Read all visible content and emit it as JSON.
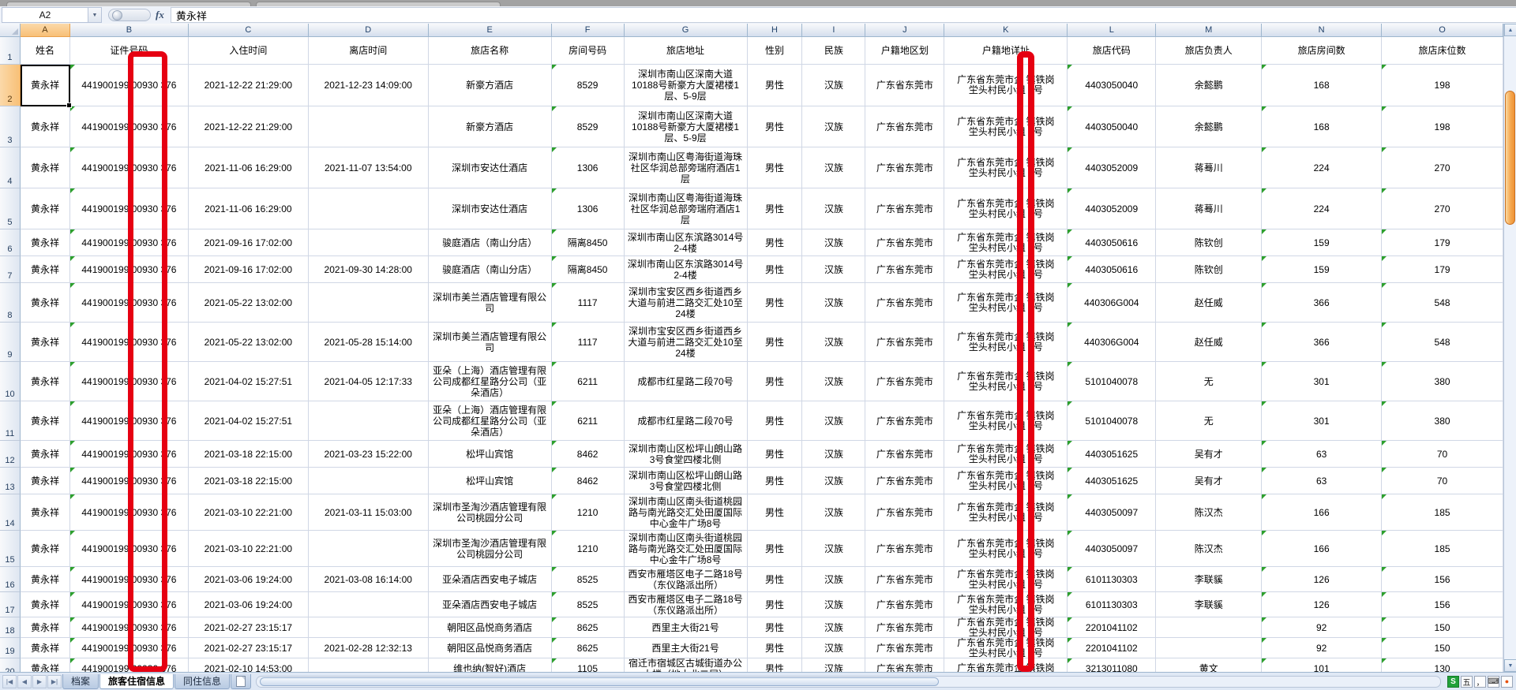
{
  "formula_bar": {
    "name_box": "A2",
    "fx_label": "fx",
    "value": "黄永祥"
  },
  "columns": {
    "letters": [
      "A",
      "B",
      "C",
      "D",
      "E",
      "F",
      "G",
      "H",
      "I",
      "J",
      "K",
      "L",
      "M",
      "N",
      "O"
    ],
    "headers": [
      "姓名",
      "证件号码",
      "入住时间",
      "离店时间",
      "旅店名称",
      "房间号码",
      "旅店地址",
      "性别",
      "民族",
      "户籍地区划",
      "户籍地详址",
      "旅店代码",
      "旅店负责人",
      "旅店房间数",
      "旅店床位数"
    ]
  },
  "common": {
    "name": "黄永祥",
    "id_parts": [
      "441900199",
      "00930",
      "376"
    ],
    "gender": "男性",
    "ethnicity": "汉族",
    "region": "广东省东莞市",
    "home_parts": [
      "广东省东莞市企",
      "镇铁岗坣头村民小组",
      "0号"
    ]
  },
  "rows": [
    {
      "num": 2,
      "checkin": "2021-12-22 21:29:00",
      "checkout": "2021-12-23 14:09:00",
      "hotel": "新豪方酒店",
      "room": "8529",
      "hotel_address": "深圳市南山区深南大道10188号新豪方大厦裙楼1层、5-9层",
      "code": "4403050040",
      "manager": "余懿鹏",
      "rooms": "168",
      "beds": "198"
    },
    {
      "num": 3,
      "checkin": "2021-12-22 21:29:00",
      "checkout": "",
      "hotel": "新豪方酒店",
      "room": "8529",
      "hotel_address": "深圳市南山区深南大道10188号新豪方大厦裙楼1层、5-9层",
      "code": "4403050040",
      "manager": "余懿鹏",
      "rooms": "168",
      "beds": "198"
    },
    {
      "num": 4,
      "checkin": "2021-11-06 16:29:00",
      "checkout": "2021-11-07 13:54:00",
      "hotel": "深圳市安达仕酒店",
      "room": "1306",
      "hotel_address": "深圳市南山区粤海街道海珠社区华润总部旁瑞府酒店1层",
      "code": "4403052009",
      "manager": "蒋蓦川",
      "rooms": "224",
      "beds": "270"
    },
    {
      "num": 5,
      "checkin": "2021-11-06 16:29:00",
      "checkout": "",
      "hotel": "深圳市安达仕酒店",
      "room": "1306",
      "hotel_address": "深圳市南山区粤海街道海珠社区华润总部旁瑞府酒店1层",
      "code": "4403052009",
      "manager": "蒋蓦川",
      "rooms": "224",
      "beds": "270"
    },
    {
      "num": 6,
      "checkin": "2021-09-16 17:02:00",
      "checkout": "",
      "hotel": "骏庭酒店（南山分店）",
      "room": "隔离8450",
      "hotel_address": "深圳市南山区东滨路3014号2-4楼",
      "code": "4403050616",
      "manager": "陈钦创",
      "rooms": "159",
      "beds": "179"
    },
    {
      "num": 7,
      "checkin": "2021-09-16 17:02:00",
      "checkout": "2021-09-30 14:28:00",
      "hotel": "骏庭酒店（南山分店）",
      "room": "隔离8450",
      "hotel_address": "深圳市南山区东滨路3014号2-4楼",
      "code": "4403050616",
      "manager": "陈钦创",
      "rooms": "159",
      "beds": "179"
    },
    {
      "num": 8,
      "checkin": "2021-05-22 13:02:00",
      "checkout": "",
      "hotel": "深圳市美兰酒店管理有限公司",
      "room": "1117",
      "hotel_address": "深圳市宝安区西乡街道西乡大道与前进二路交汇处10至24楼",
      "code": "440306G004",
      "manager": "赵任威",
      "rooms": "366",
      "beds": "548"
    },
    {
      "num": 9,
      "checkin": "2021-05-22 13:02:00",
      "checkout": "2021-05-28 15:14:00",
      "hotel": "深圳市美兰酒店管理有限公司",
      "room": "1117",
      "hotel_address": "深圳市宝安区西乡街道西乡大道与前进二路交汇处10至24楼",
      "code": "440306G004",
      "manager": "赵任威",
      "rooms": "366",
      "beds": "548"
    },
    {
      "num": 10,
      "checkin": "2021-04-02 15:27:51",
      "checkout": "2021-04-05 12:17:33",
      "hotel": "亚朵（上海）酒店管理有限公司成都红星路分公司（亚朵酒店）",
      "room": "6211",
      "hotel_address": "成都市红星路二段70号",
      "code": "5101040078",
      "manager": "无",
      "rooms": "301",
      "beds": "380"
    },
    {
      "num": 11,
      "checkin": "2021-04-02 15:27:51",
      "checkout": "",
      "hotel": "亚朵（上海）酒店管理有限公司成都红星路分公司（亚朵酒店）",
      "room": "6211",
      "hotel_address": "成都市红星路二段70号",
      "code": "5101040078",
      "manager": "无",
      "rooms": "301",
      "beds": "380"
    },
    {
      "num": 12,
      "checkin": "2021-03-18 22:15:00",
      "checkout": "2021-03-23 15:22:00",
      "hotel": "松坪山宾馆",
      "room": "8462",
      "hotel_address": "深圳市南山区松坪山朗山路3号食堂四楼北侧",
      "code": "4403051625",
      "manager": "吴有才",
      "rooms": "63",
      "beds": "70"
    },
    {
      "num": 13,
      "checkin": "2021-03-18 22:15:00",
      "checkout": "",
      "hotel": "松坪山宾馆",
      "room": "8462",
      "hotel_address": "深圳市南山区松坪山朗山路3号食堂四楼北侧",
      "code": "4403051625",
      "manager": "吴有才",
      "rooms": "63",
      "beds": "70"
    },
    {
      "num": 14,
      "checkin": "2021-03-10 22:21:00",
      "checkout": "2021-03-11 15:03:00",
      "hotel": "深圳市圣淘沙酒店管理有限公司桃园分公司",
      "room": "1210",
      "hotel_address": "深圳市南山区南头街道桃园路与南光路交汇处田厦国际中心金牛广场8号",
      "code": "4403050097",
      "manager": "陈汉杰",
      "rooms": "166",
      "beds": "185"
    },
    {
      "num": 15,
      "checkin": "2021-03-10 22:21:00",
      "checkout": "",
      "hotel": "深圳市圣淘沙酒店管理有限公司桃园分公司",
      "room": "1210",
      "hotel_address": "深圳市南山区南头街道桃园路与南光路交汇处田厦国际中心金牛广场8号",
      "code": "4403050097",
      "manager": "陈汉杰",
      "rooms": "166",
      "beds": "185"
    },
    {
      "num": 16,
      "checkin": "2021-03-06 19:24:00",
      "checkout": "2021-03-08 16:14:00",
      "hotel": "亚朵酒店西安电子城店",
      "room": "8525",
      "hotel_address": "西安市雁塔区电子二路18号（东仪路派出所）",
      "code": "6101130303",
      "manager": "李联貕",
      "rooms": "126",
      "beds": "156"
    },
    {
      "num": 17,
      "checkin": "2021-03-06 19:24:00",
      "checkout": "",
      "hotel": "亚朵酒店西安电子城店",
      "room": "8525",
      "hotel_address": "西安市雁塔区电子二路18号（东仪路派出所）",
      "code": "6101130303",
      "manager": "李联貕",
      "rooms": "126",
      "beds": "156"
    },
    {
      "num": 18,
      "checkin": "2021-02-27 23:15:17",
      "checkout": "",
      "hotel": "朝阳区品悦商务酒店",
      "room": "8625",
      "hotel_address": "西里主大街21号",
      "code": "2201041102",
      "manager": "",
      "rooms": "92",
      "beds": "150"
    },
    {
      "num": 19,
      "checkin": "2021-02-27 23:15:17",
      "checkout": "2021-02-28 12:32:13",
      "hotel": "朝阳区品悦商务酒店",
      "room": "8625",
      "hotel_address": "西里主大街21号",
      "code": "2201041102",
      "manager": "",
      "rooms": "92",
      "beds": "150"
    },
    {
      "num": 20,
      "checkin": "2021-02-10 14:53:00",
      "checkout": "",
      "hotel": "维也纳(智好)酒店",
      "room": "1105",
      "hotel_address": "宿迁市宿城区古城街道办公大楼（地上北二层）",
      "code": "3213011080",
      "manager": "黄文",
      "rooms": "101",
      "beds": "130",
      "home_parts": [
        "广东省东莞市企",
        "镇铁岗"
      ]
    }
  ],
  "sheet_tabs": {
    "items": [
      "档案",
      "旅客住宿信息",
      "同住信息"
    ],
    "active": "旅客住宿信息"
  },
  "ime": {
    "sogou": "S",
    "wubi": "五",
    "punct": "，",
    "kbd": "⌨",
    "dot": "●"
  },
  "colors": {
    "annotation_red": "#e60012",
    "scrollbar_thumb_orange": "#f0a044",
    "selected_header_orange": "#f8c077",
    "gridline": "#d0d7e5",
    "number_as_text_green": "#2da02d"
  }
}
